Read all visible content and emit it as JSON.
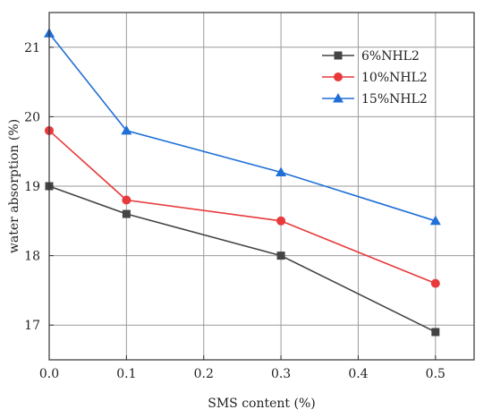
{
  "chart_data": {
    "type": "line",
    "xlabel": "SMS content (%)",
    "ylabel": "water absorption (%)",
    "xlim": [
      0.0,
      0.55
    ],
    "ylim": [
      16.5,
      21.5
    ],
    "x_ticks": [
      "0.0",
      "0.1",
      "0.2",
      "0.3",
      "0.4",
      "0.5"
    ],
    "y_ticks": [
      "17",
      "18",
      "19",
      "20",
      "21"
    ],
    "grid": true,
    "legend_position": "top-right",
    "x": [
      0.0,
      0.1,
      0.3,
      0.5
    ],
    "series": [
      {
        "name": "6%NHL2",
        "color": "#444444",
        "marker": "square",
        "values": [
          19.0,
          18.6,
          18.0,
          16.9
        ]
      },
      {
        "name": "10%NHL2",
        "color": "#e8393b",
        "marker": "circle",
        "values": [
          19.8,
          18.8,
          18.5,
          17.6
        ]
      },
      {
        "name": "15%NHL2",
        "color": "#1f6fd6",
        "marker": "triangle",
        "values": [
          21.2,
          19.8,
          19.2,
          18.5
        ]
      }
    ]
  }
}
